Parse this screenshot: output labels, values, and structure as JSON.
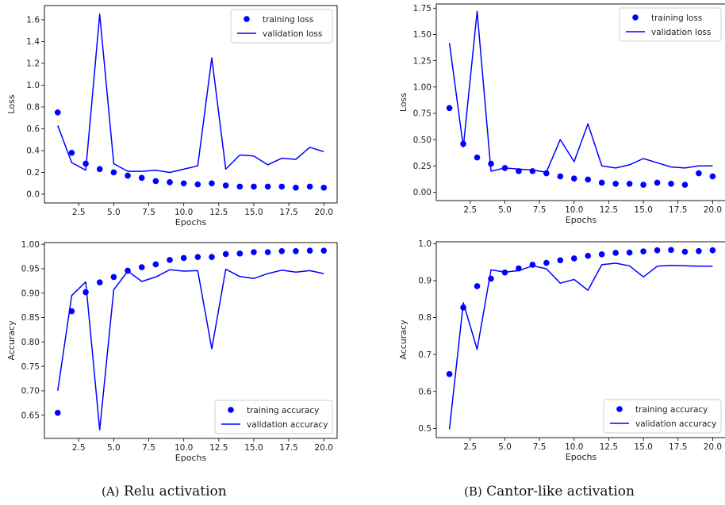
{
  "captions": [
    {
      "label": "(A)",
      "text": "Relu activation"
    },
    {
      "label": "(B)",
      "text": "Cantor-like activation"
    }
  ],
  "colors": {
    "series": "#0000ff",
    "axis": "#000000",
    "text": "#222222"
  },
  "chart_data": [
    {
      "id": "relu-loss",
      "type": "line",
      "xlabel": "Epochs",
      "ylabel": "Loss",
      "xlim": [
        0.05,
        20.95
      ],
      "ylim": [
        -0.08,
        1.73
      ],
      "xticks": [
        2.5,
        5.0,
        7.5,
        10.0,
        12.5,
        15.0,
        17.5,
        20.0
      ],
      "xtick_labels": [
        "2.5",
        "5.0",
        "7.5",
        "10.0",
        "12.5",
        "15.0",
        "17.5",
        "20.0"
      ],
      "yticks": [
        0.0,
        0.2,
        0.4,
        0.6,
        0.8,
        1.0,
        1.2,
        1.4,
        1.6
      ],
      "ytick_labels": [
        "0.0",
        "0.2",
        "0.4",
        "0.6",
        "0.8",
        "1.0",
        "1.2",
        "1.4",
        "1.6"
      ],
      "legend": "top-right",
      "x": [
        1,
        2,
        3,
        4,
        5,
        6,
        7,
        8,
        9,
        10,
        11,
        12,
        13,
        14,
        15,
        16,
        17,
        18,
        19,
        20
      ],
      "series": [
        {
          "name": "training loss",
          "style": "dots",
          "values": [
            0.75,
            0.38,
            0.28,
            0.23,
            0.2,
            0.17,
            0.15,
            0.12,
            0.11,
            0.1,
            0.09,
            0.1,
            0.08,
            0.07,
            0.07,
            0.07,
            0.07,
            0.06,
            0.07,
            0.06
          ]
        },
        {
          "name": "validation loss",
          "style": "line",
          "values": [
            0.63,
            0.29,
            0.22,
            1.65,
            0.28,
            0.21,
            0.21,
            0.22,
            0.2,
            0.23,
            0.26,
            1.25,
            0.23,
            0.36,
            0.35,
            0.27,
            0.33,
            0.32,
            0.43,
            0.39
          ]
        }
      ]
    },
    {
      "id": "cantor-loss",
      "type": "line",
      "xlabel": "Epochs",
      "ylabel": "Loss",
      "xlim": [
        0.05,
        20.95
      ],
      "ylim": [
        -0.08,
        1.79
      ],
      "xticks": [
        2.5,
        5.0,
        7.5,
        10.0,
        12.5,
        15.0,
        17.5,
        20.0
      ],
      "xtick_labels": [
        "2.5",
        "5.0",
        "7.5",
        "10.0",
        "12.5",
        "15.0",
        "17.5",
        "20.0"
      ],
      "yticks": [
        0.0,
        0.25,
        0.5,
        0.75,
        1.0,
        1.25,
        1.5,
        1.75
      ],
      "ytick_labels": [
        "0.00",
        "0.25",
        "0.50",
        "0.75",
        "1.00",
        "1.25",
        "1.50",
        "1.75"
      ],
      "legend": "top-right",
      "x": [
        1,
        2,
        3,
        4,
        5,
        6,
        7,
        8,
        9,
        10,
        11,
        12,
        13,
        14,
        15,
        16,
        17,
        18,
        19,
        20
      ],
      "series": [
        {
          "name": "training loss",
          "style": "dots",
          "values": [
            0.8,
            0.46,
            0.33,
            0.27,
            0.23,
            0.2,
            0.2,
            0.18,
            0.15,
            0.13,
            0.12,
            0.09,
            0.08,
            0.08,
            0.07,
            0.09,
            0.08,
            0.07,
            0.18,
            0.15
          ]
        },
        {
          "name": "validation loss",
          "style": "line",
          "values": [
            1.42,
            0.43,
            1.72,
            0.2,
            0.23,
            0.22,
            0.21,
            0.19,
            0.5,
            0.29,
            0.65,
            0.25,
            0.23,
            0.26,
            0.32,
            0.28,
            0.24,
            0.23,
            0.25,
            0.25
          ]
        }
      ]
    },
    {
      "id": "relu-acc",
      "type": "line",
      "xlabel": "Epochs",
      "ylabel": "Accuracy",
      "xlim": [
        0.05,
        20.95
      ],
      "ylim": [
        0.6025,
        1.0035
      ],
      "xticks": [
        2.5,
        5.0,
        7.5,
        10.0,
        12.5,
        15.0,
        17.5,
        20.0
      ],
      "xtick_labels": [
        "2.5",
        "5.0",
        "7.5",
        "10.0",
        "12.5",
        "15.0",
        "17.5",
        "20.0"
      ],
      "yticks": [
        0.65,
        0.7,
        0.75,
        0.8,
        0.85,
        0.9,
        0.95,
        1.0
      ],
      "ytick_labels": [
        "0.65",
        "0.70",
        "0.75",
        "0.80",
        "0.85",
        "0.90",
        "0.95",
        "1.00"
      ],
      "legend": "bottom-right",
      "x": [
        1,
        2,
        3,
        4,
        5,
        6,
        7,
        8,
        9,
        10,
        11,
        12,
        13,
        14,
        15,
        16,
        17,
        18,
        19,
        20
      ],
      "series": [
        {
          "name": "training accuracy",
          "style": "dots",
          "values": [
            0.655,
            0.863,
            0.902,
            0.922,
            0.933,
            0.946,
            0.953,
            0.959,
            0.968,
            0.972,
            0.974,
            0.974,
            0.98,
            0.981,
            0.984,
            0.984,
            0.986,
            0.986,
            0.987,
            0.987
          ]
        },
        {
          "name": "validation accuracy",
          "style": "line",
          "values": [
            0.7,
            0.895,
            0.923,
            0.62,
            0.907,
            0.945,
            0.924,
            0.933,
            0.948,
            0.945,
            0.946,
            0.786,
            0.949,
            0.934,
            0.93,
            0.94,
            0.947,
            0.943,
            0.946,
            0.94
          ]
        }
      ]
    },
    {
      "id": "cantor-acc",
      "type": "line",
      "xlabel": "Epochs",
      "ylabel": "Accuracy",
      "xlim": [
        0.05,
        20.95
      ],
      "ylim": [
        0.475,
        1.005
      ],
      "xticks": [
        2.5,
        5.0,
        7.5,
        10.0,
        12.5,
        15.0,
        17.5,
        20.0
      ],
      "xtick_labels": [
        "2.5",
        "5.0",
        "7.5",
        "10.0",
        "12.5",
        "15.0",
        "17.5",
        "20.0"
      ],
      "yticks": [
        0.5,
        0.6,
        0.7,
        0.8,
        0.9,
        1.0
      ],
      "ytick_labels": [
        "0.5",
        "0.6",
        "0.7",
        "0.8",
        "0.9",
        "1.0"
      ],
      "legend": "bottom-right",
      "x": [
        1,
        2,
        3,
        4,
        5,
        6,
        7,
        8,
        9,
        10,
        11,
        12,
        13,
        14,
        15,
        16,
        17,
        18,
        19,
        20
      ],
      "series": [
        {
          "name": "training accuracy",
          "style": "dots",
          "values": [
            0.647,
            0.827,
            0.885,
            0.905,
            0.922,
            0.933,
            0.943,
            0.948,
            0.955,
            0.96,
            0.967,
            0.971,
            0.975,
            0.976,
            0.979,
            0.982,
            0.983,
            0.978,
            0.98,
            0.982
          ]
        },
        {
          "name": "validation accuracy",
          "style": "line",
          "values": [
            0.498,
            0.84,
            0.714,
            0.929,
            0.923,
            0.927,
            0.94,
            0.932,
            0.893,
            0.903,
            0.874,
            0.943,
            0.947,
            0.94,
            0.91,
            0.939,
            0.941,
            0.94,
            0.939,
            0.939
          ]
        }
      ]
    }
  ]
}
